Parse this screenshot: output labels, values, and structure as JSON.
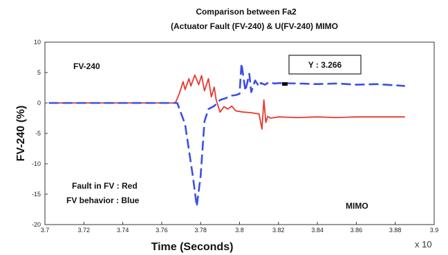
{
  "chart_data": {
    "type": "line",
    "title": [
      "Comparison between Fa2",
      "(Actuator Fault (FV-240) & U(FV-240) MIMO"
    ],
    "xlabel": "Time (Seconds)",
    "ylabel": "FV-240 (%)",
    "x_multiplier": "x 10",
    "xlim": [
      3.7,
      3.9
    ],
    "ylim": [
      -20,
      10
    ],
    "x_ticks": [
      "3.7",
      "3.72",
      "3.74",
      "3.76",
      "3.78",
      "3.8",
      "3.82",
      "3.84",
      "3.86",
      "3.88",
      "3.9"
    ],
    "x_tick_values": [
      3.7,
      3.72,
      3.74,
      3.76,
      3.78,
      3.8,
      3.82,
      3.84,
      3.86,
      3.88,
      3.9
    ],
    "y_ticks": [
      "10",
      "5",
      "0",
      "-5",
      "-10",
      "-15",
      "-20"
    ],
    "y_tick_values": [
      10,
      5,
      0,
      -5,
      -10,
      -15,
      -20
    ],
    "grid": false,
    "annotations": {
      "top_left": "FV-240",
      "datatip": "Y : 3.266",
      "legend_line1": "Fault in FV : Red",
      "legend_line2": "FV behavior : Blue",
      "bottom_right": "MIMO"
    },
    "series": [
      {
        "color": "#e8382e",
        "style": "solid",
        "x": [
          3.702,
          3.72,
          3.74,
          3.76,
          3.767,
          3.769,
          3.771,
          3.772,
          3.774,
          3.775,
          3.777,
          3.779,
          3.7805,
          3.782,
          3.784,
          3.7855,
          3.787,
          3.788,
          3.79,
          3.792,
          3.794,
          3.796,
          3.798,
          3.8,
          3.802,
          3.806,
          3.808,
          3.81,
          3.8115,
          3.8125,
          3.8135,
          3.8145,
          3.816,
          3.82,
          3.83,
          3.84,
          3.85,
          3.86,
          3.87,
          3.885
        ],
        "y": [
          0,
          0,
          0,
          0,
          0,
          1.5,
          3.5,
          2.2,
          4.0,
          2.8,
          4.6,
          3.0,
          4.5,
          2.0,
          4.0,
          1.0,
          2.6,
          0.5,
          -1.5,
          -0.6,
          -1.0,
          -0.5,
          -1.3,
          -1.4,
          -1.5,
          -1.6,
          -1.7,
          -1.8,
          -4.3,
          0.5,
          -3.2,
          -2.2,
          -2.5,
          -2.3,
          -2.4,
          -2.3,
          -2.4,
          -2.3,
          -2.3,
          -2.3
        ]
      },
      {
        "color": "#3a4ee8",
        "style": "dashed",
        "x": [
          3.702,
          3.72,
          3.74,
          3.76,
          3.768,
          3.772,
          3.776,
          3.778,
          3.78,
          3.782,
          3.784,
          3.787,
          3.79,
          3.793,
          3.796,
          3.798,
          3.8,
          3.801,
          3.803,
          3.805,
          3.806,
          3.808,
          3.81,
          3.811,
          3.813,
          3.815,
          3.818,
          3.82,
          3.83,
          3.84,
          3.85,
          3.86,
          3.87,
          3.885
        ],
        "y": [
          0,
          0,
          0,
          0,
          0,
          -3.5,
          -12.0,
          -17.0,
          -12.0,
          -3.0,
          -1.0,
          -0.5,
          0.5,
          0.8,
          1.2,
          1.3,
          1.5,
          6.5,
          2.0,
          4.8,
          1.8,
          3.7,
          2.7,
          3.3,
          3.0,
          3.4,
          3.2,
          3.266,
          3.2,
          3.1,
          3.2,
          3.0,
          3.1,
          2.8
        ]
      }
    ]
  }
}
